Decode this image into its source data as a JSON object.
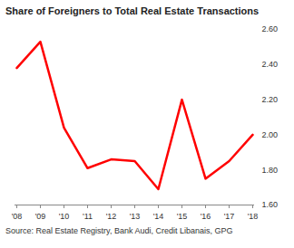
{
  "chart_data": {
    "type": "line",
    "title": "Share of Foreigners to Total Real Estate Transactions",
    "source": "Source: Real Estate Registry, Bank Audi, Credit Libanais, GPG",
    "categories": [
      "'08",
      "'09",
      "'10",
      "'11",
      "'12",
      "'13",
      "'14",
      "'15",
      "'16",
      "'17",
      "'18"
    ],
    "values": [
      2.38,
      2.53,
      2.04,
      1.81,
      1.86,
      1.85,
      1.69,
      2.2,
      1.75,
      1.85,
      2.0
    ],
    "color": "#ff0000",
    "ylim": [
      1.6,
      2.6
    ],
    "yticks": [
      {
        "value": 1.6,
        "label": "1.60"
      },
      {
        "value": 1.8,
        "label": "1.80"
      },
      {
        "value": 2.0,
        "label": "2.00"
      },
      {
        "value": 2.2,
        "label": "2.20"
      },
      {
        "value": 2.4,
        "label": "2.40"
      },
      {
        "value": 2.6,
        "label": "2.60"
      }
    ],
    "grid": false
  }
}
